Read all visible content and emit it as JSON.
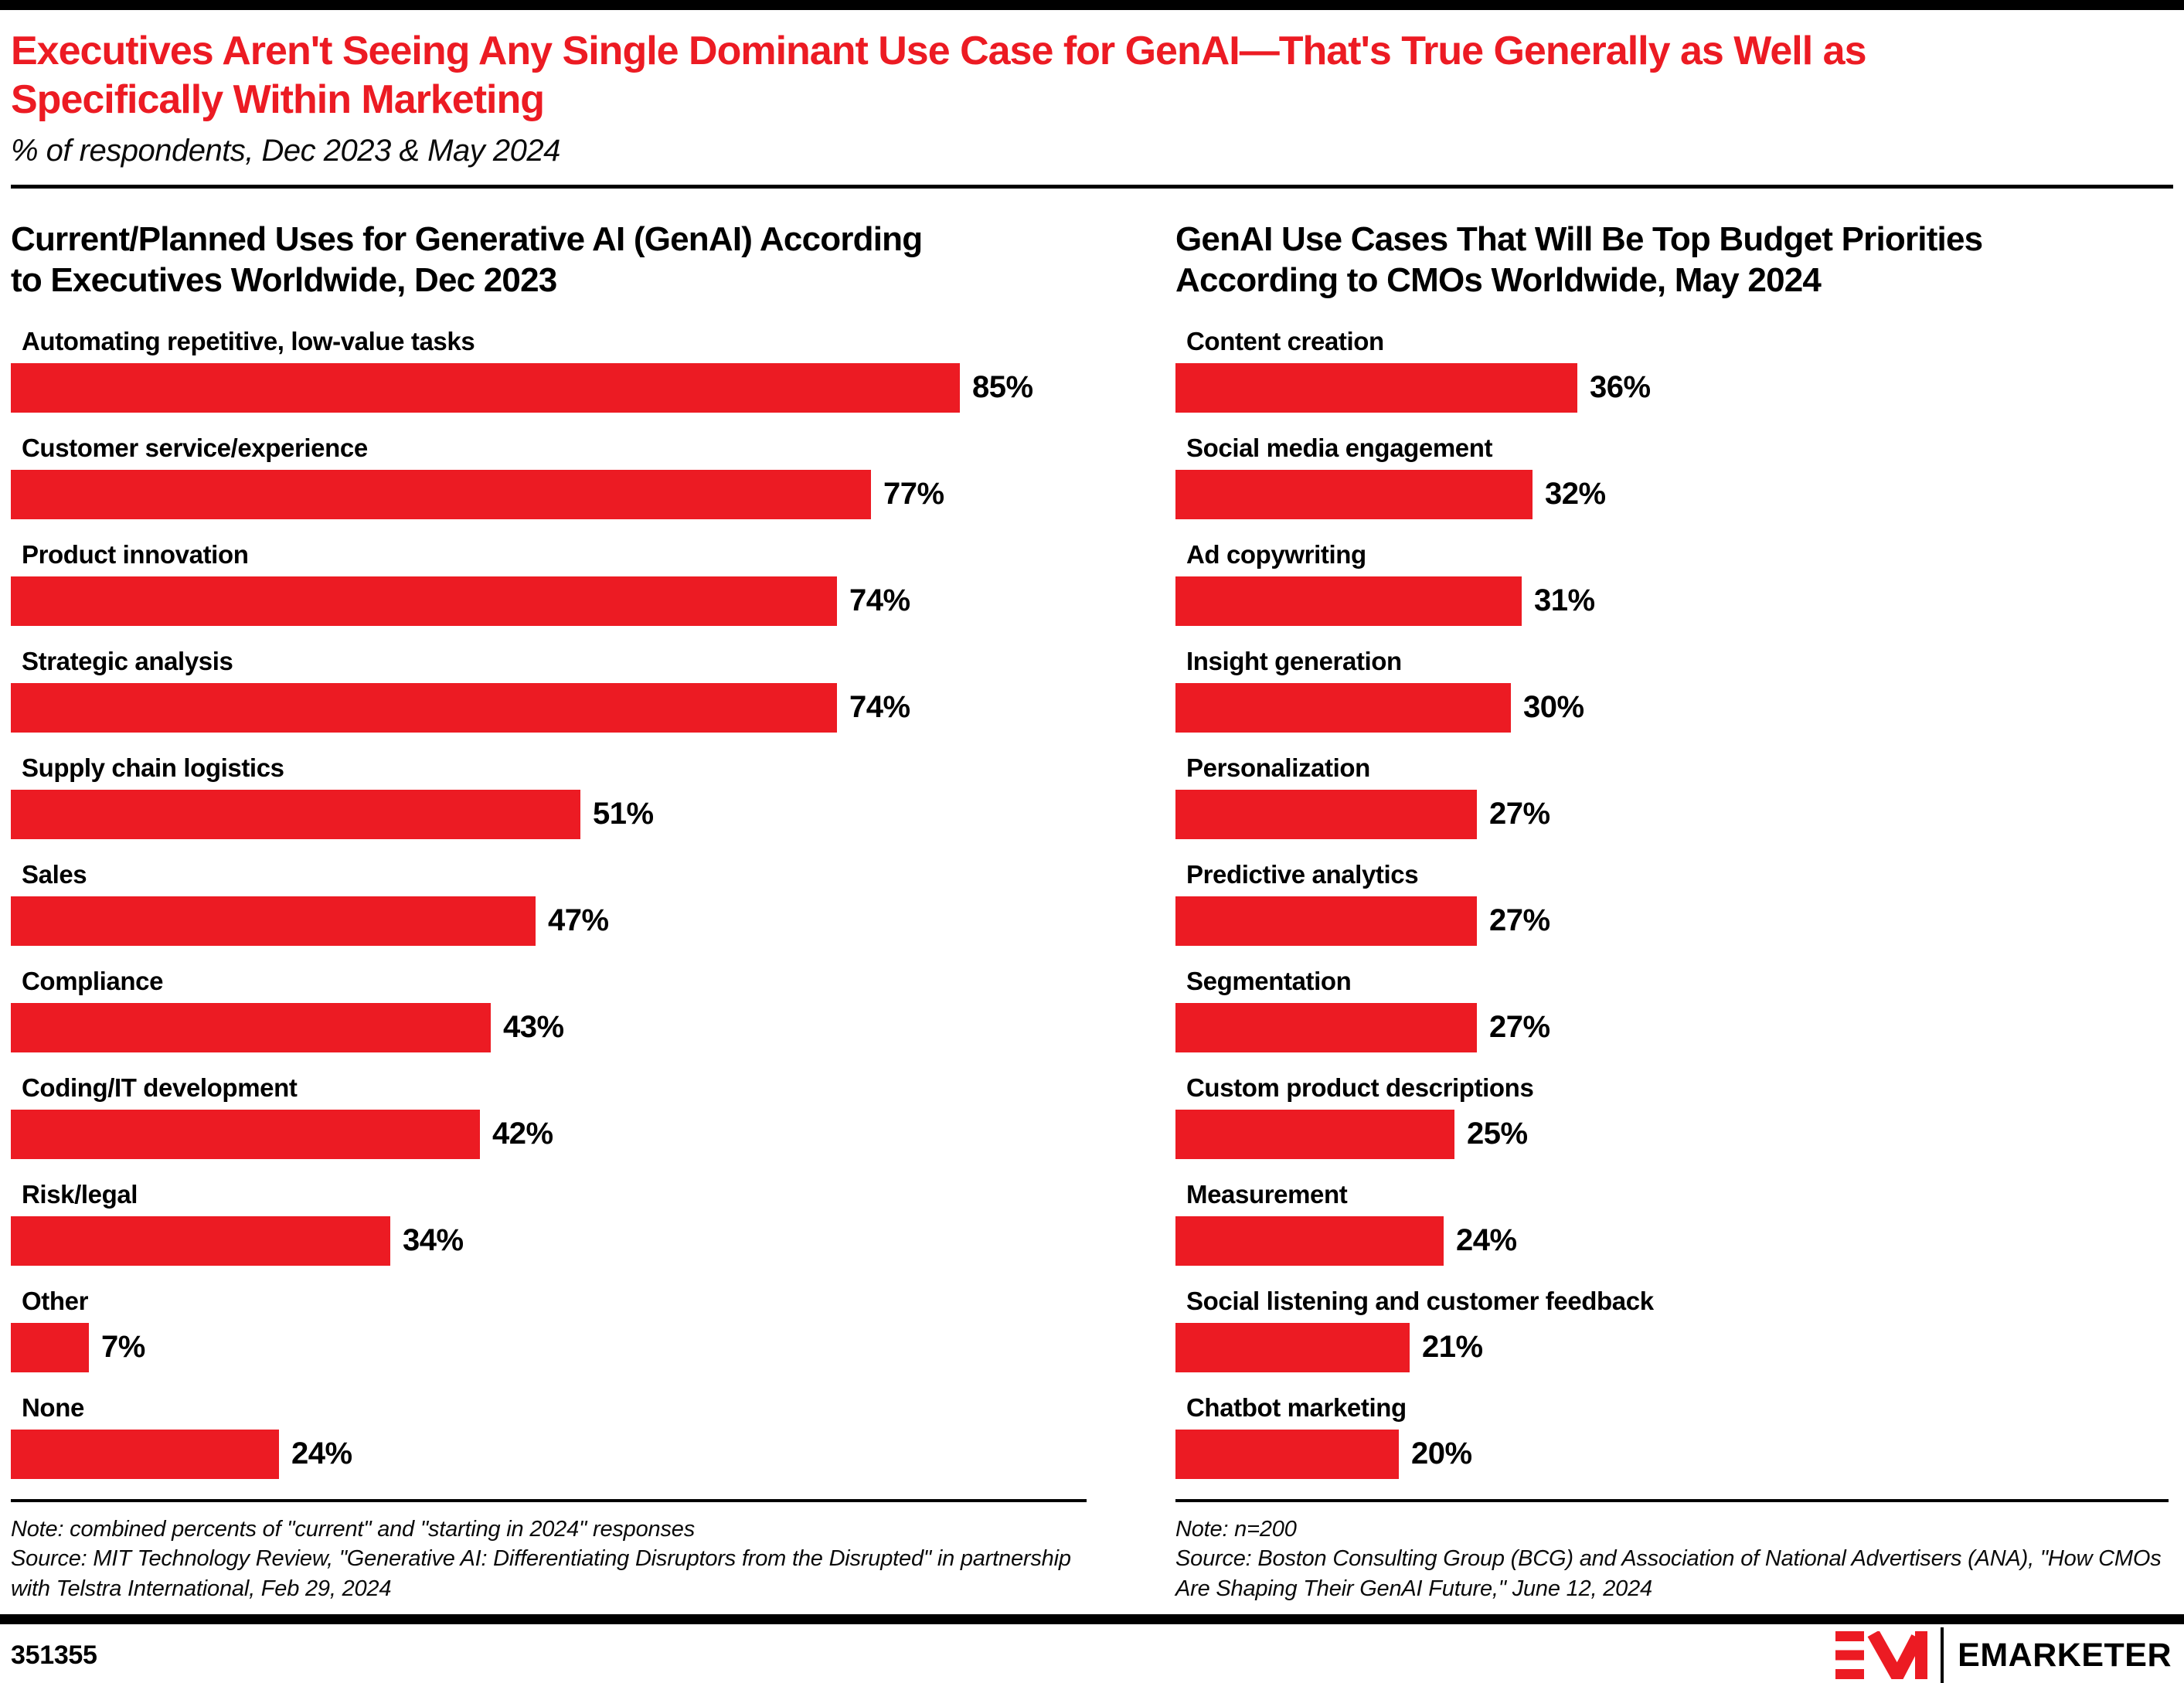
{
  "page": {
    "title": "Executives Aren't Seeing Any Single Dominant Use Case for GenAI—That's True Generally as Well as Specifically Within Marketing",
    "subtitle": "% of respondents, Dec 2023 & May 2024",
    "chart_id": "351355",
    "brand": "EMARKETER"
  },
  "chart_data": [
    {
      "type": "bar",
      "orientation": "horizontal",
      "title": "Current/Planned Uses for Generative AI (GenAI) According to Executives Worldwide, Dec 2023",
      "categories": [
        "Automating repetitive, low-value tasks",
        "Customer service/experience",
        "Product innovation",
        "Strategic analysis",
        "Supply chain logistics",
        "Sales",
        "Compliance",
        "Coding/IT development",
        "Risk/legal",
        "Other",
        "None"
      ],
      "values": [
        85,
        77,
        74,
        74,
        51,
        47,
        43,
        42,
        34,
        7,
        24
      ],
      "value_suffix": "%",
      "xlim": [
        0,
        100
      ],
      "grid": false,
      "legend": "none",
      "value_labels": "end-of-bar",
      "bar_color": "#ec1b23",
      "note": "Note: combined percents of \"current\" and \"starting in 2024\" responses",
      "source": "Source: MIT Technology Review, \"Generative AI: Differentiating Disruptors from the Disrupted\" in partnership with Telstra International, Feb 29, 2024"
    },
    {
      "type": "bar",
      "orientation": "horizontal",
      "title": "GenAI Use Cases That Will Be Top Budget Priorities According to CMOs Worldwide, May 2024",
      "categories": [
        "Content creation",
        "Social media engagement",
        "Ad copywriting",
        "Insight generation",
        "Personalization",
        "Predictive analytics",
        "Segmentation",
        "Custom product descriptions",
        "Measurement",
        "Social listening and customer feedback",
        "Chatbot marketing"
      ],
      "values": [
        36,
        32,
        31,
        30,
        27,
        27,
        27,
        25,
        24,
        21,
        20
      ],
      "value_suffix": "%",
      "xlim": [
        0,
        100
      ],
      "grid": false,
      "legend": "none",
      "value_labels": "end-of-bar",
      "bar_color": "#ec1b23",
      "note": "Note: n=200",
      "source": "Source: Boston Consulting Group (BCG) and Association of National Advertisers (ANA), \"How CMOs Are Shaping Their GenAI Future,\" June 12, 2024"
    }
  ]
}
